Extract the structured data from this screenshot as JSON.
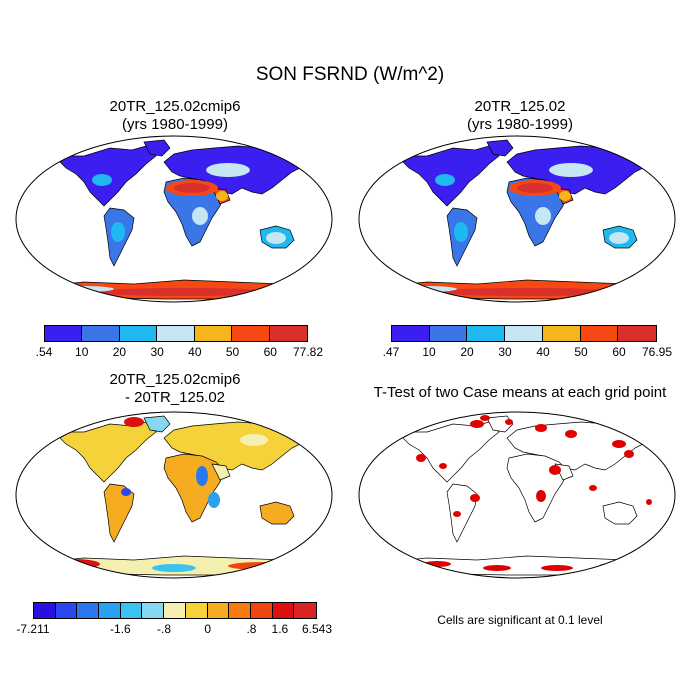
{
  "title": "SON FSRND (W/m^2)",
  "panels": [
    {
      "title_line1": "20TR_125.02cmip6",
      "title_line2": "(yrs 1980-1999)",
      "colorbar": {
        "colors": [
          "#3a1ff0",
          "#3a76e8",
          "#1fb8f0",
          "#c6e6f4",
          "#f5b51c",
          "#f54812",
          "#d8302c"
        ],
        "labels": [
          ".54",
          "10",
          "20",
          "30",
          "40",
          "50",
          "60",
          "77.82"
        ]
      }
    },
    {
      "title_line1": "20TR_125.02",
      "title_line2": "(yrs 1980-1999)",
      "colorbar": {
        "colors": [
          "#3a1ff0",
          "#3a76e8",
          "#1fb8f0",
          "#c6e6f4",
          "#f5b51c",
          "#f54812",
          "#d8302c"
        ],
        "labels": [
          ".47",
          "10",
          "20",
          "30",
          "40",
          "50",
          "60",
          "76.95"
        ]
      }
    },
    {
      "title_line1": "20TR_125.02cmip6",
      "title_line2": "- 20TR_125.02",
      "colorbar": {
        "colors": [
          "#2a10e0",
          "#2a48f0",
          "#2a78f0",
          "#2aa0f0",
          "#3cc2f0",
          "#86d8f0",
          "#f6f0b0",
          "#f6d23a",
          "#f6ac20",
          "#f67a10",
          "#ee4810",
          "#dc1010",
          "#d82424"
        ],
        "labels": [
          "-7.211",
          "-1.6",
          "-.8",
          "0",
          ".8",
          "1.6",
          "6.543"
        ],
        "label_positions": [
          0,
          4,
          6,
          8,
          10,
          12,
          14
        ]
      }
    },
    {
      "title_line1": "T-Test of two Case means at each grid point",
      "note": "Cells are significant at 0.1 level"
    }
  ]
}
